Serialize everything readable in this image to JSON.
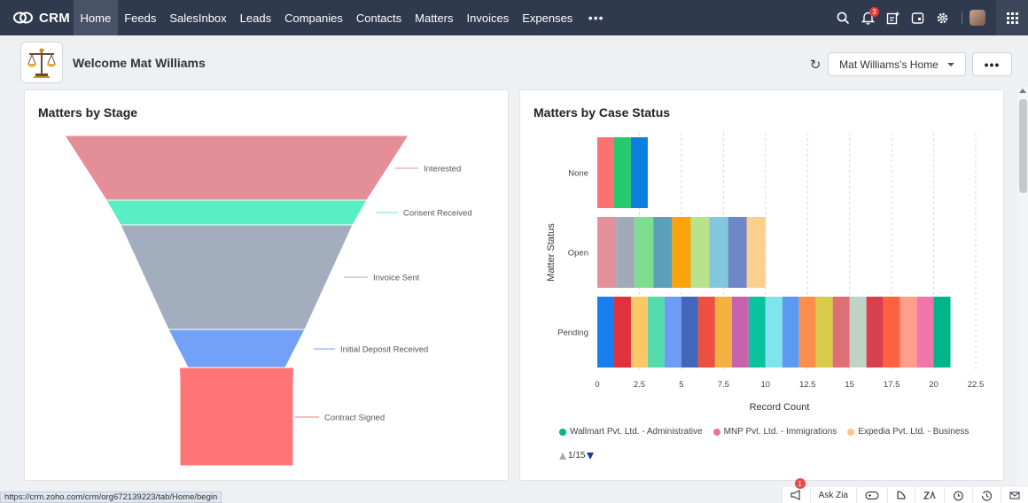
{
  "app": {
    "brand": "CRM"
  },
  "nav": {
    "tabs": [
      {
        "label": "Home",
        "active": true
      },
      {
        "label": "Feeds"
      },
      {
        "label": "SalesInbox"
      },
      {
        "label": "Leads"
      },
      {
        "label": "Companies"
      },
      {
        "label": "Contacts"
      },
      {
        "label": "Matters"
      },
      {
        "label": "Invoices"
      },
      {
        "label": "Expenses"
      }
    ],
    "more_label": "•••",
    "notification_count": "3"
  },
  "header": {
    "welcome": "Welcome Mat Williams",
    "home_select": "Mat Williams's Home",
    "more_label": "•••",
    "refresh_icon": "refresh-icon"
  },
  "funnel_card": {
    "title": "Matters by Stage",
    "stages": [
      {
        "label": "Interested",
        "color": "#e48f97"
      },
      {
        "label": "Consent Received",
        "color": "#58efc4"
      },
      {
        "label": "Invoice Sent",
        "color": "#a2adbd"
      },
      {
        "label": "Initial Deposit Received",
        "color": "#72a1f7"
      },
      {
        "label": "Contract Signed",
        "color": "#ff7475"
      }
    ]
  },
  "bar_card": {
    "title": "Matters by Case Status",
    "legend": [
      {
        "label": "Wallmart Pvt. Ltd. - Administrative",
        "color": "#00b38a"
      },
      {
        "label": "MNP Pvt. Ltd. - Immigrations",
        "color": "#ef6fa5"
      },
      {
        "label": "Expedia Pvt. Ltd. - Business",
        "color": "#fcc883"
      }
    ],
    "pager": "1/15"
  },
  "chart_data": {
    "type": "bar",
    "orientation": "horizontal",
    "stacked": true,
    "categories": [
      "None",
      "Open",
      "Pending"
    ],
    "values": [
      3,
      10,
      21
    ],
    "segment_colors": {
      "None": [
        "#fa7272",
        "#26c96e",
        "#0b7fe0"
      ],
      "Open": [
        "#e4909b",
        "#a1aab8",
        "#7dde8f",
        "#5b9fb8",
        "#fba30a",
        "#b8e28c",
        "#82c7dd",
        "#6d87c9",
        "#fbd08e"
      ],
      "Pending": [
        "#1880ee",
        "#e0323c",
        "#fbc868",
        "#55dbae",
        "#6c9cf6",
        "#4466b8",
        "#ec5040",
        "#f4b13f",
        "#c862ae",
        "#09c39e",
        "#80e5ea",
        "#5b9af1",
        "#ff8d4c",
        "#d6cc4a",
        "#de6f74",
        "#c1d3c6",
        "#d7414d",
        "#ff6143",
        "#ff9e8a",
        "#ef76a8",
        "#00b48b"
      ]
    },
    "xlabel": "Record Count",
    "ylabel": "Matter Status",
    "xticks": [
      "0",
      "2.5",
      "5",
      "7.5",
      "10",
      "12.5",
      "15",
      "17.5",
      "20",
      "22.5"
    ],
    "xlim": [
      0,
      22.5
    ],
    "grid": true
  },
  "status_bar": {
    "url": "https://crm.zoho.com/crm/org672139223/tab/Home/begin",
    "ask_zia": "Ask Zia",
    "badge": "1"
  }
}
